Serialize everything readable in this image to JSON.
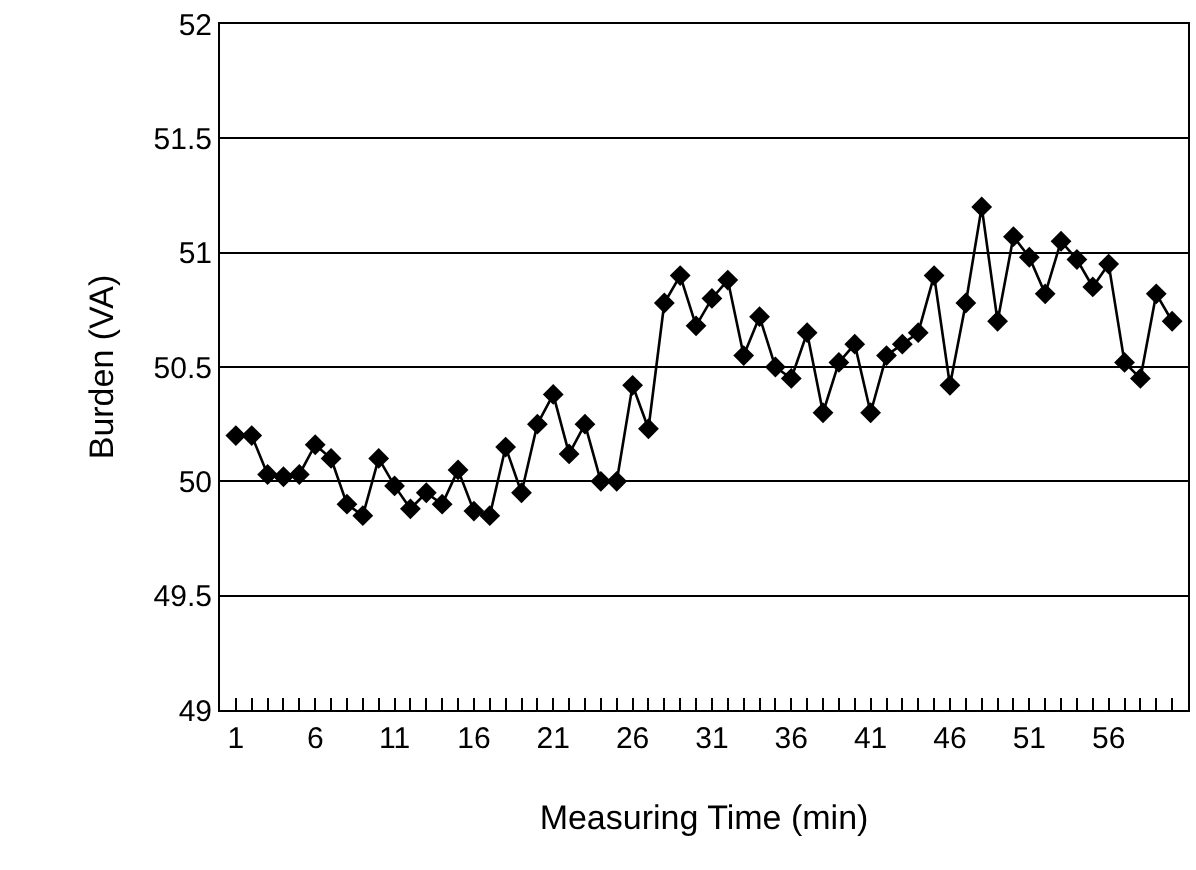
{
  "chart_data": {
    "type": "line",
    "xlabel": "Measuring Time (min)",
    "ylabel": "Burden (VA)",
    "x": [
      1,
      2,
      3,
      4,
      5,
      6,
      7,
      8,
      9,
      10,
      11,
      12,
      13,
      14,
      15,
      16,
      17,
      18,
      19,
      20,
      21,
      22,
      23,
      24,
      25,
      26,
      27,
      28,
      29,
      30,
      31,
      32,
      33,
      34,
      35,
      36,
      37,
      38,
      39,
      40,
      41,
      42,
      43,
      44,
      45,
      46,
      47,
      48,
      49,
      50,
      51,
      52,
      53,
      54,
      55,
      56,
      57,
      58,
      59,
      60
    ],
    "series": [
      {
        "color": "#000000",
        "values": [
          50.2,
          50.2,
          50.03,
          50.02,
          50.03,
          50.16,
          50.1,
          49.9,
          49.85,
          50.1,
          49.98,
          49.88,
          49.95,
          49.9,
          50.05,
          49.87,
          49.85,
          50.15,
          49.95,
          50.25,
          50.38,
          50.12,
          50.25,
          50.0,
          50.0,
          50.42,
          50.23,
          50.78,
          50.9,
          50.68,
          50.8,
          50.88,
          50.55,
          50.72,
          50.5,
          50.45,
          50.65,
          50.3,
          50.52,
          50.6,
          50.3,
          50.55,
          50.6,
          50.65,
          50.9,
          50.42,
          50.78,
          51.2,
          50.7,
          51.07,
          50.98,
          50.82,
          51.05,
          50.97,
          50.85,
          50.95,
          50.52,
          50.45,
          50.82,
          50.7
        ]
      }
    ],
    "xlim": [
      0,
      61
    ],
    "xticks": [
      1,
      {
        "value": 2,
        "label": null
      },
      {
        "value": 3,
        "label": null
      },
      {
        "value": 4,
        "label": null
      },
      {
        "value": 5,
        "label": null
      },
      6,
      {
        "value": 7,
        "label": null
      },
      {
        "value": 8,
        "label": null
      },
      {
        "value": 9,
        "label": null
      },
      {
        "value": 10,
        "label": null
      },
      11,
      {
        "value": 12,
        "label": null
      },
      {
        "value": 13,
        "label": null
      },
      {
        "value": 14,
        "label": null
      },
      {
        "value": 15,
        "label": null
      },
      16,
      {
        "value": 17,
        "label": null
      },
      {
        "value": 18,
        "label": null
      },
      {
        "value": 19,
        "label": null
      },
      {
        "value": 20,
        "label": null
      },
      21,
      {
        "value": 22,
        "label": null
      },
      {
        "value": 23,
        "label": null
      },
      {
        "value": 24,
        "label": null
      },
      {
        "value": 25,
        "label": null
      },
      26,
      {
        "value": 27,
        "label": null
      },
      {
        "value": 28,
        "label": null
      },
      {
        "value": 29,
        "label": null
      },
      {
        "value": 30,
        "label": null
      },
      31,
      {
        "value": 32,
        "label": null
      },
      {
        "value": 33,
        "label": null
      },
      {
        "value": 34,
        "label": null
      },
      {
        "value": 35,
        "label": null
      },
      36,
      {
        "value": 37,
        "label": null
      },
      {
        "value": 38,
        "label": null
      },
      {
        "value": 39,
        "label": null
      },
      {
        "value": 40,
        "label": null
      },
      41,
      {
        "value": 42,
        "label": null
      },
      {
        "value": 43,
        "label": null
      },
      {
        "value": 44,
        "label": null
      },
      {
        "value": 45,
        "label": null
      },
      46,
      {
        "value": 47,
        "label": null
      },
      {
        "value": 48,
        "label": null
      },
      {
        "value": 49,
        "label": null
      },
      {
        "value": 50,
        "label": null
      },
      51,
      {
        "value": 52,
        "label": null
      },
      {
        "value": 53,
        "label": null
      },
      {
        "value": 54,
        "label": null
      },
      {
        "value": 55,
        "label": null
      },
      56,
      {
        "value": 57,
        "label": null
      },
      {
        "value": 58,
        "label": null
      },
      {
        "value": 59,
        "label": null
      },
      {
        "value": 60,
        "label": null
      }
    ],
    "ylim": [
      49,
      52
    ],
    "yticks": [
      49,
      49.5,
      50,
      50.5,
      51,
      51.5,
      52
    ],
    "grid": "y",
    "marker": "diamond",
    "line_style": "solid"
  }
}
